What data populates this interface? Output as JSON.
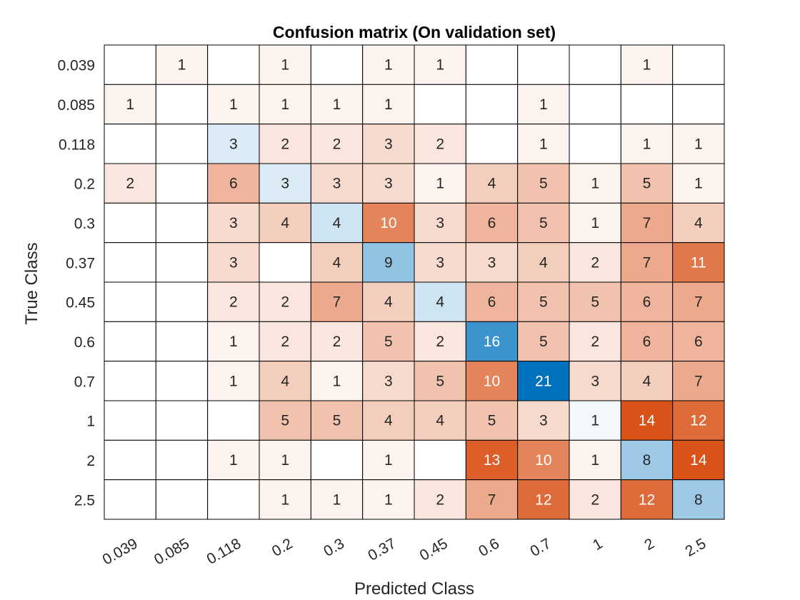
{
  "chart_data": {
    "type": "heatmap",
    "title": "Confusion matrix (On validation set)",
    "xlabel": "Predicted Class",
    "ylabel": "True Class",
    "classes": [
      "0.039",
      "0.085",
      "0.118",
      "0.2",
      "0.3",
      "0.37",
      "0.45",
      "0.6",
      "0.7",
      "1",
      "2",
      "2.5"
    ],
    "matrix": [
      [
        null,
        1,
        null,
        1,
        null,
        1,
        1,
        null,
        null,
        null,
        1,
        null
      ],
      [
        1,
        null,
        1,
        1,
        1,
        1,
        null,
        null,
        1,
        null,
        null,
        null
      ],
      [
        null,
        null,
        3,
        2,
        2,
        3,
        2,
        null,
        1,
        null,
        1,
        1
      ],
      [
        2,
        null,
        6,
        3,
        3,
        3,
        1,
        4,
        5,
        1,
        5,
        1
      ],
      [
        null,
        null,
        3,
        4,
        4,
        10,
        3,
        6,
        5,
        1,
        7,
        4
      ],
      [
        null,
        null,
        3,
        null,
        4,
        9,
        3,
        3,
        4,
        2,
        7,
        11
      ],
      [
        null,
        null,
        2,
        2,
        7,
        4,
        4,
        6,
        5,
        5,
        6,
        7
      ],
      [
        null,
        null,
        1,
        2,
        2,
        5,
        2,
        16,
        5,
        2,
        6,
        6
      ],
      [
        null,
        null,
        1,
        4,
        1,
        3,
        5,
        10,
        21,
        3,
        4,
        7
      ],
      [
        null,
        null,
        null,
        5,
        5,
        4,
        4,
        5,
        3,
        1,
        14,
        12
      ],
      [
        null,
        null,
        1,
        1,
        null,
        1,
        null,
        13,
        10,
        1,
        8,
        14
      ],
      [
        null,
        null,
        null,
        1,
        1,
        1,
        2,
        7,
        12,
        2,
        12,
        8
      ]
    ],
    "colors": {
      "diagonal_max": "#0072bd",
      "offdiagonal_max": "#d95319",
      "zero": "#ffffff",
      "grid": "#000000",
      "text_dark": "#262626",
      "text_light": "#ffffff"
    }
  }
}
